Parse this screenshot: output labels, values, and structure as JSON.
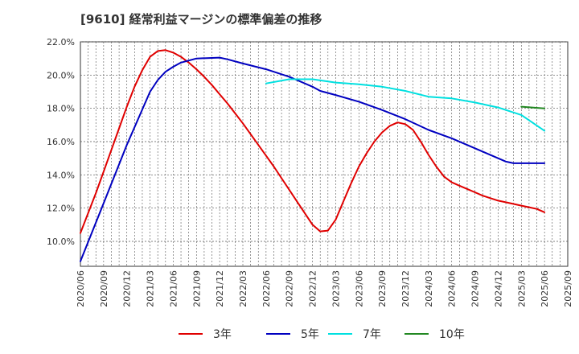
{
  "chart_data": {
    "type": "line",
    "title": "[9610]  経常利益マージンの標準偏差の推移",
    "x_labels": [
      "2020/06",
      "2020/09",
      "2020/12",
      "2021/03",
      "2021/06",
      "2021/09",
      "2021/12",
      "2022/03",
      "2022/06",
      "2022/09",
      "2022/12",
      "2023/03",
      "2023/06",
      "2023/09",
      "2023/12",
      "2024/03",
      "2024/06",
      "2024/09",
      "2024/12",
      "2025/03",
      "2025/06",
      "2025/09"
    ],
    "y_ticks": [
      "10.0%",
      "12.0%",
      "14.0%",
      "16.0%",
      "18.0%",
      "20.0%",
      "22.0%"
    ],
    "ylim": [
      8.5,
      22.0
    ],
    "grid": true,
    "legend_position": "bottom",
    "series": [
      {
        "name": "3年",
        "color": "#e00000",
        "x": [
          "2020/06",
          "2020/07",
          "2020/08",
          "2020/09",
          "2020/10",
          "2020/11",
          "2020/12",
          "2021/01",
          "2021/02",
          "2021/03",
          "2021/04",
          "2021/05",
          "2021/06",
          "2021/07",
          "2021/08",
          "2021/09",
          "2021/10",
          "2021/11",
          "2021/12",
          "2022/01",
          "2022/02",
          "2022/03",
          "2022/04",
          "2022/05",
          "2022/06",
          "2022/07",
          "2022/08",
          "2022/09",
          "2022/10",
          "2022/11",
          "2022/12",
          "2023/01",
          "2023/02",
          "2023/03",
          "2023/04",
          "2023/05",
          "2023/06",
          "2023/07",
          "2023/08",
          "2023/09",
          "2023/10",
          "2023/11",
          "2023/12",
          "2024/01",
          "2024/02",
          "2024/03",
          "2024/04",
          "2024/05",
          "2024/06",
          "2024/07",
          "2024/08",
          "2024/09",
          "2024/10",
          "2024/11",
          "2024/12",
          "2025/01",
          "2025/02",
          "2025/03",
          "2025/04",
          "2025/05",
          "2025/06"
        ],
        "values": [
          10.5,
          11.7,
          12.9,
          14.2,
          15.5,
          16.8,
          18.1,
          19.3,
          20.3,
          21.1,
          21.45,
          21.5,
          21.35,
          21.1,
          20.75,
          20.35,
          19.9,
          19.4,
          18.85,
          18.3,
          17.7,
          17.1,
          16.45,
          15.8,
          15.15,
          14.5,
          13.8,
          13.1,
          12.4,
          11.7,
          11.0,
          10.6,
          10.65,
          11.3,
          12.4,
          13.5,
          14.5,
          15.3,
          16.0,
          16.55,
          16.95,
          17.15,
          17.05,
          16.7,
          16.0,
          15.2,
          14.5,
          13.9,
          13.55,
          13.35,
          13.15,
          12.95,
          12.75,
          12.6,
          12.45,
          12.35,
          12.25,
          12.15,
          12.05,
          11.95,
          11.75
        ]
      },
      {
        "name": "5年",
        "color": "#0000c0",
        "x": [
          "2020/06",
          "2020/09",
          "2020/12",
          "2021/03",
          "2021/04",
          "2021/05",
          "2021/06",
          "2021/07",
          "2021/09",
          "2021/12",
          "2022/01",
          "2022/03",
          "2022/06",
          "2022/09",
          "2022/12",
          "2023/01",
          "2023/03",
          "2023/06",
          "2023/09",
          "2023/12",
          "2024/03",
          "2024/06",
          "2024/09",
          "2024/12",
          "2025/01",
          "2025/02",
          "2025/03",
          "2025/06"
        ],
        "values": [
          8.8,
          12.3,
          15.8,
          19.0,
          19.7,
          20.2,
          20.5,
          20.75,
          21.0,
          21.05,
          20.95,
          20.7,
          20.35,
          19.9,
          19.3,
          19.05,
          18.8,
          18.4,
          17.9,
          17.35,
          16.7,
          16.2,
          15.6,
          15.0,
          14.8,
          14.7,
          14.7,
          14.7
        ]
      },
      {
        "name": "7年",
        "color": "#00e0e0",
        "x": [
          "2022/06",
          "2022/09",
          "2022/12",
          "2023/03",
          "2023/06",
          "2023/09",
          "2023/12",
          "2024/03",
          "2024/06",
          "2024/09",
          "2024/12",
          "2025/03",
          "2025/06"
        ],
        "values": [
          19.5,
          19.75,
          19.75,
          19.55,
          19.45,
          19.3,
          19.05,
          18.7,
          18.6,
          18.35,
          18.05,
          17.6,
          16.65
        ]
      },
      {
        "name": "10年",
        "color": "#228822",
        "x": [
          "2025/03",
          "2025/06"
        ],
        "values": [
          18.1,
          18.0
        ]
      }
    ]
  }
}
